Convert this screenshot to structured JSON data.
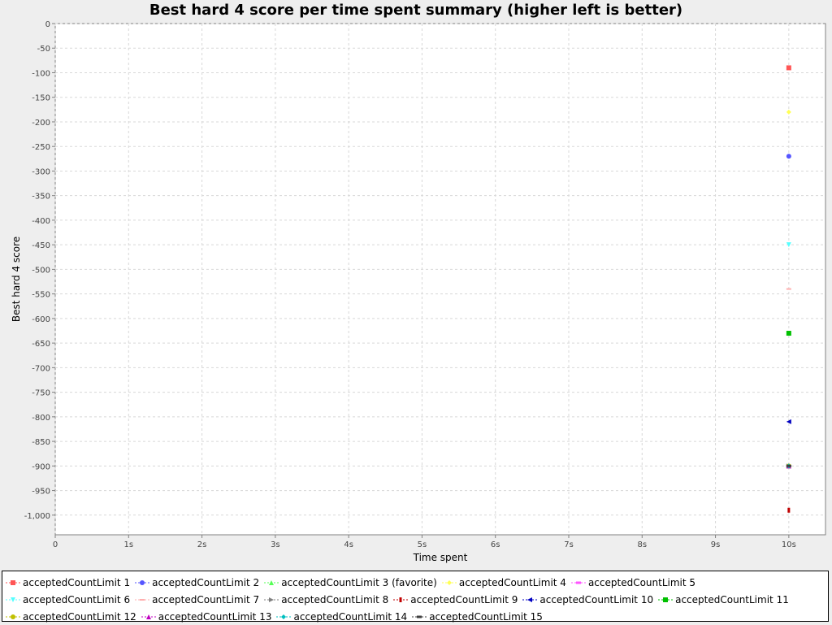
{
  "chart_data": {
    "type": "scatter",
    "title": "Best hard 4 score per time spent summary (higher left is better)",
    "xlabel": "Time spent",
    "ylabel": "Best hard 4 score",
    "xlim": [
      0,
      10.5
    ],
    "ylim": [
      -1040,
      0
    ],
    "x_ticks": [
      {
        "value": 0,
        "label": "0"
      },
      {
        "value": 1,
        "label": "1s"
      },
      {
        "value": 2,
        "label": "2s"
      },
      {
        "value": 3,
        "label": "3s"
      },
      {
        "value": 4,
        "label": "4s"
      },
      {
        "value": 5,
        "label": "5s"
      },
      {
        "value": 6,
        "label": "6s"
      },
      {
        "value": 7,
        "label": "7s"
      },
      {
        "value": 8,
        "label": "8s"
      },
      {
        "value": 9,
        "label": "9s"
      },
      {
        "value": 10,
        "label": "10s"
      }
    ],
    "y_ticks": [
      {
        "value": 0,
        "label": "0"
      },
      {
        "value": -50,
        "label": "-50"
      },
      {
        "value": -100,
        "label": "-100"
      },
      {
        "value": -150,
        "label": "-150"
      },
      {
        "value": -200,
        "label": "-200"
      },
      {
        "value": -250,
        "label": "-250"
      },
      {
        "value": -300,
        "label": "-300"
      },
      {
        "value": -350,
        "label": "-350"
      },
      {
        "value": -400,
        "label": "-400"
      },
      {
        "value": -450,
        "label": "-450"
      },
      {
        "value": -500,
        "label": "-500"
      },
      {
        "value": -550,
        "label": "-550"
      },
      {
        "value": -600,
        "label": "-600"
      },
      {
        "value": -650,
        "label": "-650"
      },
      {
        "value": -700,
        "label": "-700"
      },
      {
        "value": -750,
        "label": "-750"
      },
      {
        "value": -800,
        "label": "-800"
      },
      {
        "value": -850,
        "label": "-850"
      },
      {
        "value": -900,
        "label": "-900"
      },
      {
        "value": -950,
        "label": "-950"
      },
      {
        "value": -1000,
        "label": "-1,000"
      }
    ],
    "grid": true,
    "legend_position": "bottom",
    "series": [
      {
        "name": "acceptedCountLimit 1",
        "color": "#ff5555",
        "marker": "square",
        "points": [
          {
            "x": 10,
            "y": -90
          }
        ]
      },
      {
        "name": "acceptedCountLimit 2",
        "color": "#5555ff",
        "marker": "circle",
        "points": [
          {
            "x": 10,
            "y": -270
          }
        ]
      },
      {
        "name": "acceptedCountLimit 3 (favorite)",
        "color": "#55ff55",
        "marker": "triangle-up",
        "points": [
          {
            "x": 10,
            "y": -900
          }
        ]
      },
      {
        "name": "acceptedCountLimit 4",
        "color": "#ffff55",
        "marker": "diamond",
        "points": [
          {
            "x": 10,
            "y": -180
          }
        ]
      },
      {
        "name": "acceptedCountLimit 5",
        "color": "#ff55ff",
        "marker": "hrect",
        "points": [
          {
            "x": 10,
            "y": -900
          }
        ]
      },
      {
        "name": "acceptedCountLimit 6",
        "color": "#55ffff",
        "marker": "triangle-down",
        "points": [
          {
            "x": 10,
            "y": -450
          }
        ]
      },
      {
        "name": "acceptedCountLimit 7",
        "color": "#ffafaf",
        "marker": "hline",
        "points": [
          {
            "x": 10,
            "y": -540
          }
        ]
      },
      {
        "name": "acceptedCountLimit 8",
        "color": "#808080",
        "marker": "triangle-right",
        "points": [
          {
            "x": 10,
            "y": -900
          }
        ]
      },
      {
        "name": "acceptedCountLimit 9",
        "color": "#c00000",
        "marker": "vrect",
        "points": [
          {
            "x": 10,
            "y": -990
          }
        ]
      },
      {
        "name": "acceptedCountLimit 10",
        "color": "#0000c0",
        "marker": "triangle-left",
        "points": [
          {
            "x": 10,
            "y": -810
          }
        ]
      },
      {
        "name": "acceptedCountLimit 11",
        "color": "#00c000",
        "marker": "square",
        "points": [
          {
            "x": 10,
            "y": -630
          }
        ]
      },
      {
        "name": "acceptedCountLimit 12",
        "color": "#c0c000",
        "marker": "circle",
        "points": [
          {
            "x": 10,
            "y": -900
          }
        ]
      },
      {
        "name": "acceptedCountLimit 13",
        "color": "#c000c0",
        "marker": "triangle-up",
        "points": [
          {
            "x": 10,
            "y": -900
          }
        ]
      },
      {
        "name": "acceptedCountLimit 14",
        "color": "#00c0c0",
        "marker": "diamond",
        "points": [
          {
            "x": 10,
            "y": -900
          }
        ]
      },
      {
        "name": "acceptedCountLimit 15",
        "color": "#404040",
        "marker": "hrect",
        "points": [
          {
            "x": 10,
            "y": -900
          }
        ]
      }
    ]
  }
}
